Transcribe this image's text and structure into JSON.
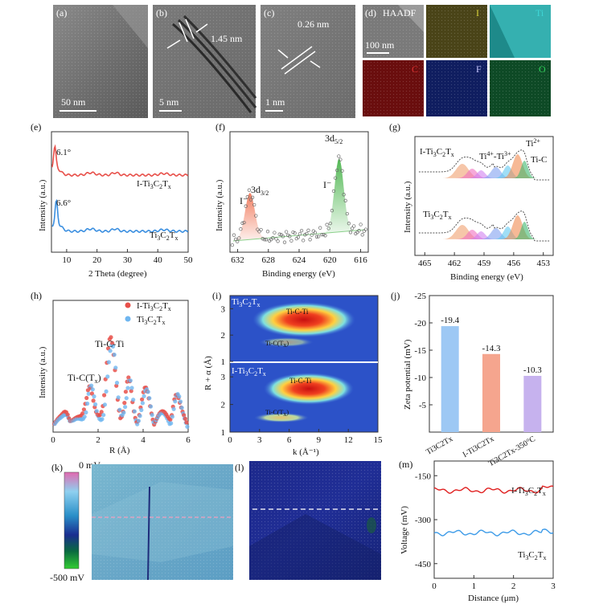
{
  "figure": {
    "panel_letters": {
      "a": "(a)",
      "b": "(b)",
      "c": "(c)",
      "d": "(d)",
      "e": "(e)",
      "f": "(f)",
      "g": "(g)",
      "h": "(h)",
      "i": "(i)",
      "j": "(j)",
      "k": "(k)",
      "l": "(l)",
      "m": "(m)"
    },
    "tem": {
      "a_scale": "50 nm",
      "b_scale": "5 nm",
      "b_spacing": "1.45 nm",
      "c_scale": "1 nm",
      "c_spacing": "0.26 nm"
    },
    "eds": {
      "haadf": "HAADF",
      "scale": "100 nm",
      "elements": [
        {
          "symbol": "I",
          "color": "#d8d23a"
        },
        {
          "symbol": "Ti",
          "color": "#3fd6d6"
        },
        {
          "symbol": "C",
          "color": "#e03030"
        },
        {
          "symbol": "F",
          "color": "#c8c8ff"
        },
        {
          "symbol": "O",
          "color": "#2fd05a"
        }
      ]
    },
    "kpfm": {
      "colorbar_top": "0 mV",
      "colorbar_bottom": "-500 mV"
    }
  },
  "chart_data": [
    {
      "id": "e",
      "type": "line",
      "xlabel": "2 Theta (degree)",
      "ylabel": "Intensity (a.u.)",
      "xlim": [
        5,
        50
      ],
      "xticks": [
        10,
        20,
        30,
        40,
        50
      ],
      "peak_labels": [
        "6.1°",
        "6.6°"
      ],
      "series": [
        {
          "name": "I-Ti3C2Tx",
          "color": "#e8504a",
          "peak_x": 6.1
        },
        {
          "name": "Ti3C2Tx",
          "color": "#3b8fe0",
          "peak_x": 6.6
        }
      ]
    },
    {
      "id": "f",
      "type": "scatter",
      "xlabel": "Binding energy (eV)",
      "ylabel": "Intensity (a.u.)",
      "xlim": [
        633,
        615
      ],
      "xticks": [
        632,
        628,
        624,
        620,
        616
      ],
      "peaks": [
        {
          "label": "3d3/2",
          "center": 630.4,
          "ion": "I⁻",
          "color": "#f08050"
        },
        {
          "label": "3d5/2",
          "center": 618.8,
          "ion": "I⁻",
          "color": "#4cb848"
        }
      ]
    },
    {
      "id": "g",
      "type": "line",
      "xlabel": "Binding energy (eV)",
      "ylabel": "Intensity (a.u.)",
      "xlim": [
        466,
        452
      ],
      "xticks": [
        465,
        462,
        459,
        456,
        453
      ],
      "series": [
        {
          "name": "I-Ti3C2Tx"
        },
        {
          "name": "Ti3C2Tx"
        }
      ],
      "components": [
        {
          "label": "Ti⁴⁺-Ti³⁺",
          "center": 459.5
        },
        {
          "label": "Ti²⁺",
          "center": 456.2
        },
        {
          "label": "Ti-C",
          "center": 455.0
        }
      ]
    },
    {
      "id": "h",
      "type": "scatter",
      "xlabel": "R (Å)",
      "ylabel": "Intensity (a.u.)",
      "xlim": [
        0,
        6
      ],
      "xticks": [
        0,
        2,
        4,
        6
      ],
      "annotations": [
        "Ti-C-Ti",
        "Ti-C(Tx)"
      ],
      "series": [
        {
          "name": "I-Ti3C2Tx",
          "color": "#e8504a"
        },
        {
          "name": "Ti3C2Tx",
          "color": "#6fb6f0"
        }
      ]
    },
    {
      "id": "i",
      "type": "heatmap",
      "xlabel": "k (Å⁻¹)",
      "ylabel": "R + α (Å)",
      "xlim": [
        0,
        15
      ],
      "xticks": [
        0,
        3,
        6,
        9,
        12,
        15
      ],
      "ylim": [
        1,
        3.5
      ],
      "yticks": [
        1,
        2,
        3
      ],
      "panels": [
        {
          "name": "Ti3C2Tx",
          "labels": [
            "Ti-C-Ti",
            "Ti-C(Tx)"
          ]
        },
        {
          "name": "I-Ti3C2Tx",
          "labels": [
            "Ti-C-Ti",
            "Ti-C(Tx)"
          ]
        }
      ]
    },
    {
      "id": "j",
      "type": "bar",
      "ylabel": "Zeta potential (mV)",
      "ylim": [
        -25,
        0
      ],
      "yticks": [
        -25,
        -20,
        -15,
        -10,
        -5
      ],
      "categories": [
        "Ti3C2Tx",
        "I-Ti3C2Tx",
        "Ti3C2Tx-350°C"
      ],
      "values": [
        -19.4,
        -14.3,
        -10.3
      ],
      "value_labels": [
        "-19.4",
        "-14.3",
        "-10.3"
      ],
      "colors": [
        "#9dc8f4",
        "#f5a58e",
        "#c6b2ee"
      ]
    },
    {
      "id": "m",
      "type": "line",
      "xlabel": "Distance (μm)",
      "ylabel": "Voltage (mV)",
      "xlim": [
        0,
        3
      ],
      "xticks": [
        0,
        1,
        2,
        3
      ],
      "ylim": [
        -500,
        -100
      ],
      "yticks": [
        -150,
        -300,
        -450
      ],
      "series": [
        {
          "name": "I-Ti3C2Tx",
          "color": "#e02020",
          "mean": -200
        },
        {
          "name": "Ti3C2Tx",
          "color": "#3d9be8",
          "mean": -345
        }
      ]
    }
  ]
}
